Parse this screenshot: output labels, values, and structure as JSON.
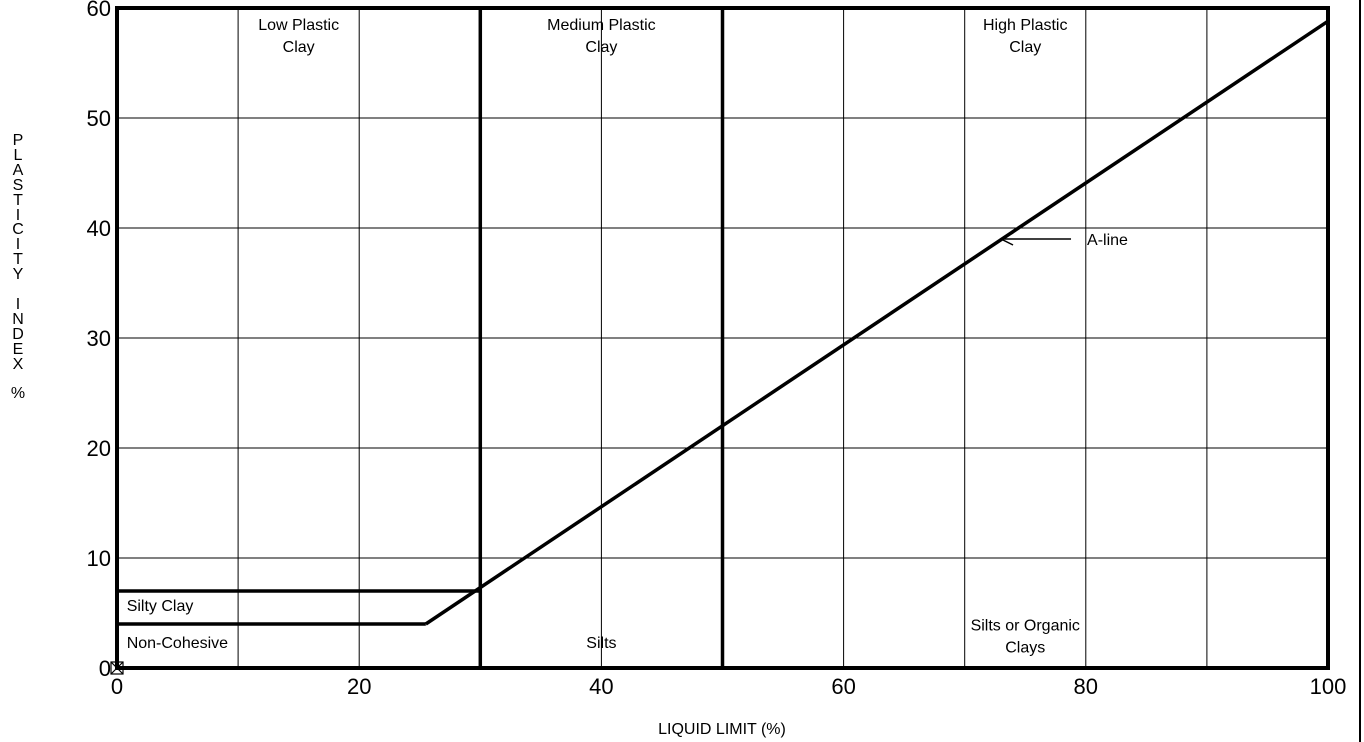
{
  "chart_data": {
    "type": "line",
    "title": "",
    "xlabel": "LIQUID LIMIT (%)",
    "ylabel": "PLASTICITY INDEX %",
    "xlim": [
      0,
      100
    ],
    "ylim": [
      0,
      60
    ],
    "x_ticks": [
      "0",
      "20",
      "40",
      "60",
      "80",
      "100"
    ],
    "y_ticks": [
      "0",
      "10",
      "20",
      "30",
      "40",
      "50",
      "60"
    ],
    "grid": true,
    "series": [
      {
        "name": "A-line",
        "x": [
          25.5,
          100
        ],
        "y": [
          4,
          58.8
        ]
      },
      {
        "x": [
          0,
          25.5
        ],
        "y": [
          4,
          4
        ]
      },
      {
        "x": [
          0,
          30
        ],
        "y": [
          7,
          7
        ]
      },
      {
        "x": [
          30,
          30
        ],
        "y": [
          0,
          60
        ]
      },
      {
        "x": [
          50,
          50
        ],
        "y": [
          0,
          60
        ]
      }
    ],
    "regions": [
      {
        "label_lines": [
          "Low Plastic",
          "Clay"
        ],
        "x": 15,
        "y": 58
      },
      {
        "label_lines": [
          "Medium Plastic",
          "Clay"
        ],
        "x": 40,
        "y": 58
      },
      {
        "label_lines": [
          "High Plastic",
          "Clay"
        ],
        "x": 75,
        "y": 58
      },
      {
        "label_lines": [
          "Silty Clay"
        ],
        "x": 0.8,
        "y": 5.2
      },
      {
        "label_lines": [
          "Non-Cohesive"
        ],
        "x": 0.8,
        "y": 1.8
      },
      {
        "label_lines": [
          "Silts"
        ],
        "x": 40,
        "y": 1.8
      },
      {
        "label_lines": [
          "Silts or Organic",
          "Clays"
        ],
        "x": 75,
        "y": 3.4
      }
    ],
    "annotations": [
      {
        "text": "A-line",
        "arrow_to": [
          73,
          39
        ]
      }
    ],
    "markers": [
      {
        "x": 0,
        "y": 0
      }
    ]
  },
  "axis": {
    "x_title": "LIQUID LIMIT (%)",
    "y_title_letters": "P\nL\nA\nS\nT\nI\nC\nI\nT\nY\n\nI\nN\nD\nE\nX\n\n%"
  }
}
